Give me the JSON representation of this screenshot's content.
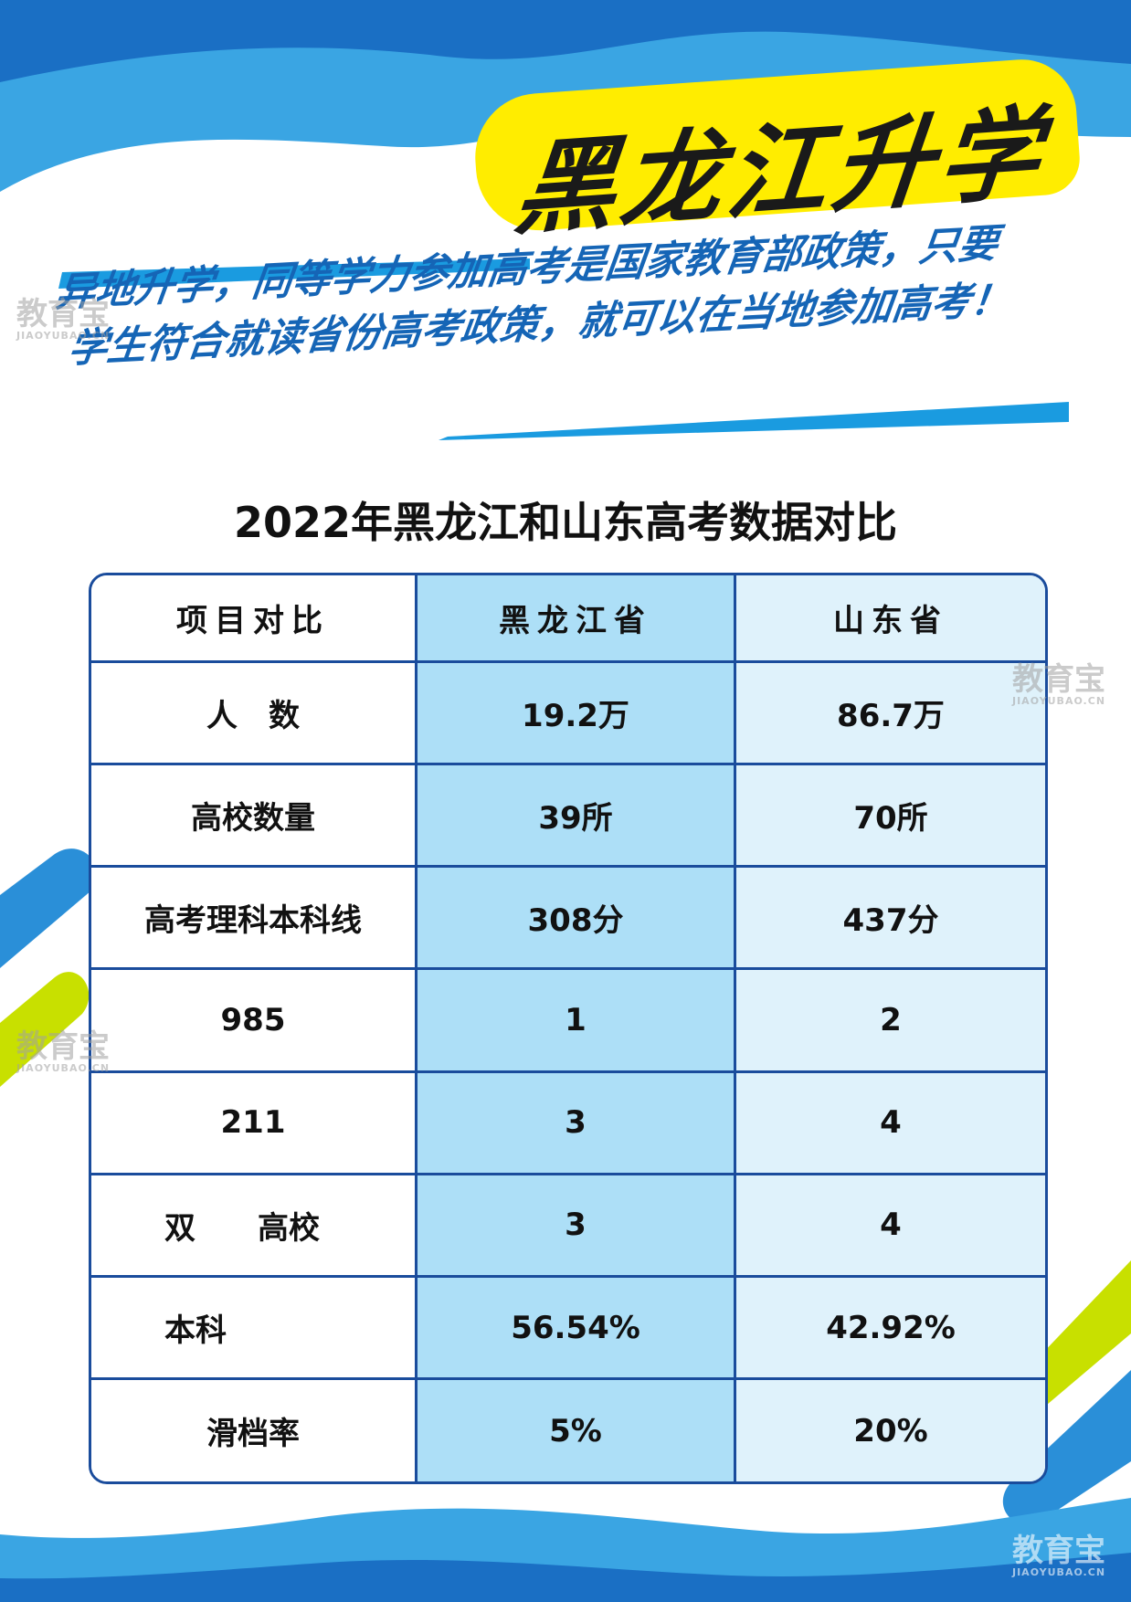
{
  "poster": {
    "banner_title": "黑龙江升学",
    "slogan_line1": "异地升学，同等学力参加高考是国家教育部政策，只要",
    "slogan_line2": "学生符合就读省份高考政策，就可以在当地参加高考！",
    "table_title": "2022年黑龙江和山东高考数据对比"
  },
  "table": {
    "headers": [
      "项目对比",
      "黑龙江省",
      "山东省"
    ],
    "rows": [
      [
        "人　数",
        "19.2万",
        "86.7万"
      ],
      [
        "高校数量",
        "39所",
        "70所"
      ],
      [
        "高考理科本科线",
        "308分",
        "437分"
      ],
      [
        "985",
        "1",
        "2"
      ],
      [
        "211",
        "3",
        "4"
      ],
      [
        "双　　高校",
        "3",
        "4"
      ],
      [
        "本科",
        "56.54%",
        "42.92%"
      ],
      [
        "滑档率",
        "5%",
        "20%"
      ]
    ]
  },
  "watermark": {
    "cn": "教育宝",
    "en": "JIAOYUBAO.CN"
  },
  "colors": {
    "blue_dark": "#1a6fc4",
    "blue_light": "#3aa5e3",
    "yellow": "#ffed00",
    "lime": "#c8e000",
    "table_border": "#1a4c9c",
    "heilongjiang_col": "#addff7",
    "shandong_col": "#dff2fb"
  }
}
